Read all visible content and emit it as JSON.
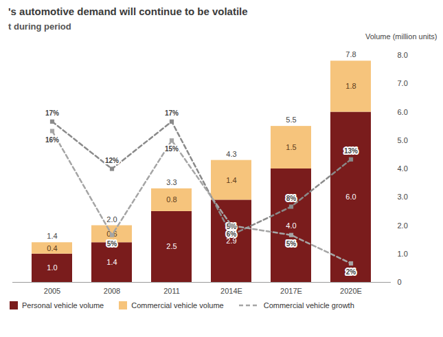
{
  "chart_data": {
    "type": "bar",
    "stacked": true,
    "title": "'s automotive demand will continue to be volatile",
    "y2label": "t during period",
    "ylabel": "Volume (million units)",
    "categories": [
      "2005",
      "2008",
      "2011",
      "2014E",
      "2017E",
      "2020E"
    ],
    "ylim": [
      0,
      8
    ],
    "yticks": [
      0,
      {
        "value": 1,
        "label": "1.0"
      },
      {
        "value": 2,
        "label": "2.0"
      },
      {
        "value": 3,
        "label": "3.0"
      },
      {
        "value": 4,
        "label": "4.0"
      },
      {
        "value": 5,
        "label": "5.0"
      },
      {
        "value": 6,
        "label": "6.0"
      },
      {
        "value": 7,
        "label": "7.0"
      },
      {
        "value": 8,
        "label": "8.0"
      }
    ],
    "y2lim": [
      0,
      24
    ],
    "y2ticks": [],
    "grid": false,
    "data_labels": true,
    "legend": "bottom-left",
    "totals": [
      1.4,
      2.0,
      3.3,
      4.3,
      5.5,
      7.8
    ],
    "total_labels": [
      "1.4",
      "2.0",
      "3.3",
      "4.3",
      "5.5",
      "7.8"
    ],
    "series": [
      {
        "name": "Personal vehicle volume",
        "type": "bar",
        "color": "#7a1c1c",
        "values": [
          1.0,
          1.4,
          2.5,
          2.9,
          4.0,
          6.0
        ],
        "value_labels": [
          "1.0",
          "1.4",
          "2.5",
          "2.9",
          "4.0",
          "6.0"
        ]
      },
      {
        "name": "Commercial vehicle volume",
        "type": "bar",
        "color": "#f6c47c",
        "values": [
          0.4,
          0.6,
          0.8,
          1.4,
          1.5,
          1.8
        ],
        "value_labels": [
          "0.4",
          "0.6",
          "0.8",
          "1.4",
          "1.5",
          "1.8"
        ]
      },
      {
        "type": "line",
        "axis": "y2",
        "color": "#8a8a8a",
        "line_style": "dashed",
        "marker": "square",
        "values": [
          17,
          12,
          17,
          5,
          8,
          13
        ],
        "value_labels": [
          "17%",
          "12%",
          "17%",
          "5%",
          "8%",
          "13%"
        ]
      },
      {
        "name": "Commercial vehicle growth",
        "type": "line",
        "axis": "y2",
        "color": "#a5a5a5",
        "line_style": "dashed",
        "marker": "square",
        "values": [
          16,
          5,
          15,
          6,
          5,
          2
        ],
        "value_labels": [
          "16%",
          "5%",
          "15%",
          "6%",
          "5%",
          "2%"
        ]
      }
    ]
  }
}
